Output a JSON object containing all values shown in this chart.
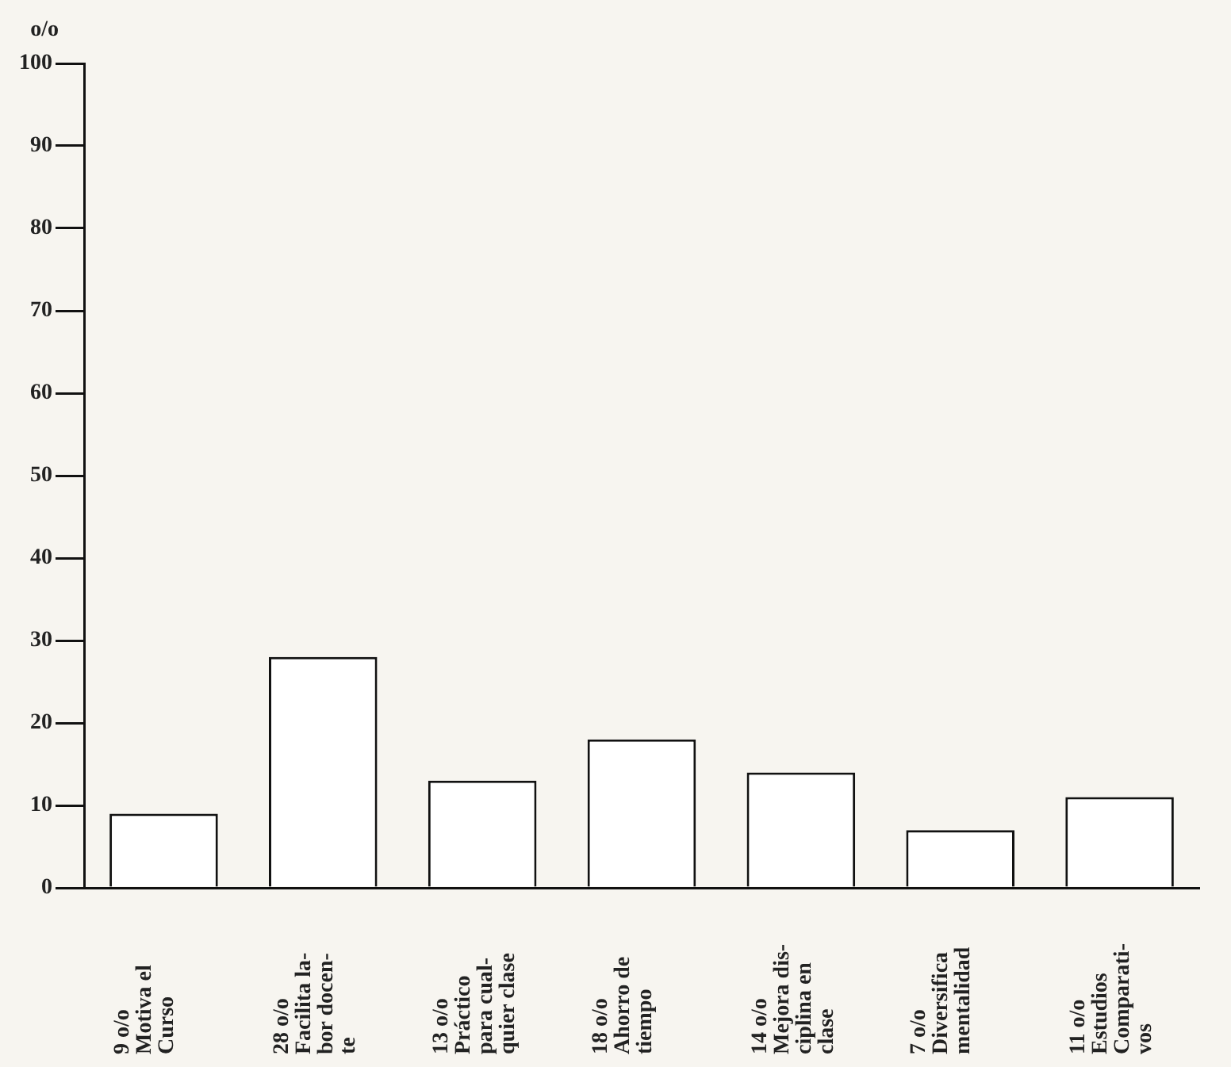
{
  "chart_data": {
    "type": "bar",
    "ylabel": "o/o",
    "categories": [
      "Motiva el\nCurso",
      "Facilita la-\nbor docen-\nte",
      "Práctico\npara cual-\nquier clase",
      "Ahorro de\ntiempo",
      "Mejora dis-\nciplina en\nclase",
      "Diversifica\nmentalidad",
      "Estudios\nComparati-\nvos"
    ],
    "values": [
      9,
      28,
      13,
      18,
      14,
      7,
      11
    ],
    "value_labels": [
      "9 o/o",
      "28 o/o",
      "13 o/o",
      "18 o/o",
      "14 o/o",
      "7 o/o",
      "11 o/o"
    ],
    "color": "#ffffff",
    "ylim": [
      0,
      100
    ],
    "yticks": [
      0,
      10,
      20,
      30,
      40,
      50,
      60,
      70,
      80,
      90,
      100
    ],
    "grid": false,
    "legend": false
  }
}
